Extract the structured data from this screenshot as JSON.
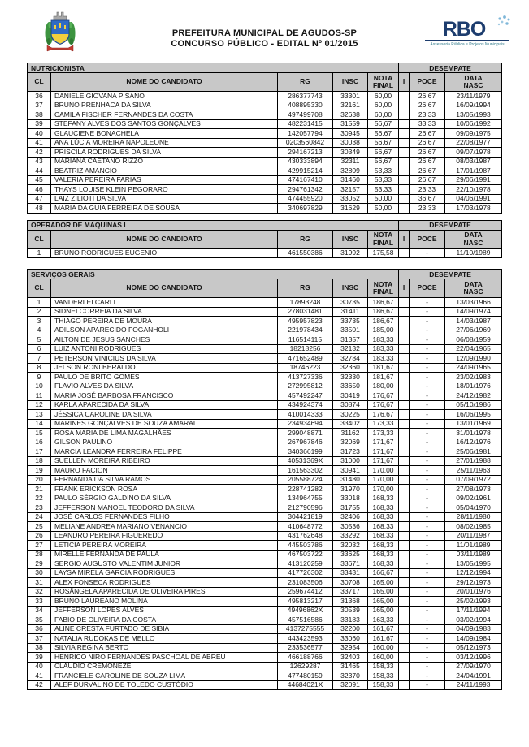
{
  "colors": {
    "table_header_bg": "#c8c8c8",
    "rbo_navy": "#1d3d6e",
    "rbo_teal": "#2f7a8a",
    "crest_blue": "#2f6bc4",
    "crest_yellow": "#f2cf3c",
    "crest_green": "#3d9440",
    "crest_red": "#c43a31"
  },
  "header": {
    "title_line1": "PREFEITURA MUNICIPAL DE AGUDOS-SP",
    "title_line2": "CONCURSO PÚBLICO - EDITAL Nº 01/2015",
    "rbo_text": "RBO",
    "rbo_subtext": "Assessoria Pública e Projetos Municipais"
  },
  "labels": {
    "desempate": "DESEMPATE"
  },
  "columns": {
    "cl": "CL",
    "nome": "NOME DO CANDIDATO",
    "rg": "RG",
    "insc": "INSC",
    "nota1": "NOTA",
    "nota2": "FINAL",
    "i": "I",
    "poce": "POCE",
    "nasc1": "DATA",
    "nasc2": "NASC"
  },
  "tables": [
    {
      "title": "NUTRICIONISTA",
      "rows": [
        [
          "36",
          "DANIELE GIOVANA PISANO",
          "286377743",
          "33301",
          "60,00",
          "",
          "26,67",
          "23/11/1979"
        ],
        [
          "37",
          "BRUNO PRENHACA DA SILVA",
          "408895330",
          "32161",
          "60,00",
          "",
          "26,67",
          "16/09/1994"
        ],
        [
          "38",
          "CAMILA FISCHER FERNANDES DA COSTA",
          "497499708",
          "32638",
          "60,00",
          "",
          "23,33",
          "13/05/1993"
        ],
        [
          "39",
          "STEFANY ALVES DOS SANTOS GONÇALVES",
          "482231415",
          "31559",
          "56,67",
          "",
          "33,33",
          "10/06/1992"
        ],
        [
          "40",
          "GLAUCIENE BONACHELA",
          "142057794",
          "30945",
          "56,67",
          "",
          "26,67",
          "09/09/1975"
        ],
        [
          "41",
          "ANA LÚCIA MOREIRA NAPOLEONE",
          "0203560842",
          "30038",
          "56,67",
          "",
          "26,67",
          "22/08/1977"
        ],
        [
          "42",
          "PRISCILA RODRIGUES DA SILVA",
          "294167213",
          "30349",
          "56,67",
          "",
          "26,67",
          "09/07/1978"
        ],
        [
          "43",
          "MARIANA CAETANO RIZZO",
          "430333894",
          "32311",
          "56,67",
          "",
          "26,67",
          "08/03/1987"
        ],
        [
          "44",
          "BEATRIZ AMANCIO",
          "429915214",
          "32809",
          "53,33",
          "",
          "26,67",
          "17/01/1987"
        ],
        [
          "45",
          "VALERIA PEREIRA FARIAS",
          "474167410",
          "31460",
          "53,33",
          "",
          "26,67",
          "29/06/1991"
        ],
        [
          "46",
          "THAYS LOUISE KLEIN PEGORARO",
          "294761342",
          "32157",
          "53,33",
          "",
          "23,33",
          "22/10/1978"
        ],
        [
          "47",
          "LAIZ ZILIOTI DA SILVA",
          "474455920",
          "33052",
          "50,00",
          "",
          "36,67",
          "04/06/1991"
        ],
        [
          "48",
          "MARIA DA GUIA FERREIRA DE SOUSA",
          "340697829",
          "31629",
          "50,00",
          "",
          "23,33",
          "17/03/1978"
        ]
      ]
    },
    {
      "title": "OPERADOR DE MÁQUINAS I",
      "rows": [
        [
          "1",
          "BRUNO RODRIGUES EUGENIO",
          "461550386",
          "31992",
          "175,58",
          "",
          "-",
          "11/10/1989"
        ]
      ]
    },
    {
      "title": "SERVIÇOS GERAIS",
      "rows": [
        [
          "1",
          "VANDERLEI CARLI",
          "17893248",
          "30735",
          "186,67",
          "",
          "-",
          "13/03/1966"
        ],
        [
          "2",
          "SIDNEI CORREIA DA SILVA",
          "278031481",
          "31411",
          "186,67",
          "",
          "-",
          "14/09/1974"
        ],
        [
          "3",
          "THIAGO PEREIRA DE MOURA",
          "495957823",
          "33735",
          "186,67",
          "",
          "-",
          "14/03/1987"
        ],
        [
          "4",
          "ADILSON APARECIDO FOGANHOLI",
          "221978434",
          "33501",
          "185,00",
          "",
          "-",
          "27/06/1969"
        ],
        [
          "5",
          "AILTON DE JESUS SANCHES",
          "116514115",
          "31357",
          "183,33",
          "",
          "-",
          "06/08/1959"
        ],
        [
          "6",
          "LUIZ ANTONI RODRIGUES",
          "18218256",
          "32132",
          "183,33",
          "",
          "-",
          "22/04/1965"
        ],
        [
          "7",
          "PETERSON VINICIUS DA SILVA",
          "471652489",
          "32784",
          "183,33",
          "",
          "-",
          "12/09/1990"
        ],
        [
          "8",
          "JELSON RONI BERALDO",
          "18746223",
          "32360",
          "181,67",
          "",
          "-",
          "24/09/1965"
        ],
        [
          "9",
          "PAULO DE BRITO GOMES",
          "413727336",
          "32330",
          "181,67",
          "",
          "-",
          "23/02/1983"
        ],
        [
          "10",
          "FLAVIO ALVES DA SILVA",
          "272995812",
          "33650",
          "180,00",
          "",
          "-",
          "18/01/1976"
        ],
        [
          "11",
          "MARIA JOSÉ BARBOSA FRANCISCO",
          "457492247",
          "30419",
          "176,67",
          "",
          "-",
          "24/12/1982"
        ],
        [
          "12",
          "KARLA APARECIDA DA SILVA",
          "434924374",
          "30874",
          "176,67",
          "",
          "-",
          "05/10/1986"
        ],
        [
          "13",
          "JÉSSICA CAROLINE DA SILVA",
          "410014333",
          "30225",
          "176,67",
          "",
          "-",
          "16/06/1995"
        ],
        [
          "14",
          "MARINES GONÇALVES DE SOUZA AMARAL",
          "234934694",
          "33402",
          "173,33",
          "",
          "-",
          "13/01/1969"
        ],
        [
          "15",
          "ROSA MARIA DE LIMA MAGALHÃES",
          "299048871",
          "31162",
          "173,33",
          "",
          "-",
          "31/01/1978"
        ],
        [
          "16",
          "GILSON PAULINO",
          "267967846",
          "32069",
          "171,67",
          "",
          "-",
          "16/12/1976"
        ],
        [
          "17",
          "MARCIA LEANDRA FERREIRA FELIPPE",
          "340366199",
          "31723",
          "171,67",
          "",
          "-",
          "25/06/1981"
        ],
        [
          "18",
          "SUELLEN MOREIRA RIBEIRO",
          "40531369X",
          "31000",
          "171,67",
          "",
          "-",
          "27/01/1988"
        ],
        [
          "19",
          "MAURO FACION",
          "161563302",
          "30941",
          "170,00",
          "",
          "-",
          "25/11/1963"
        ],
        [
          "20",
          "FERNANDA DA SILVA RAMOS",
          "205588724",
          "31480",
          "170,00",
          "",
          "-",
          "07/09/1972"
        ],
        [
          "21",
          "FRANK ERICKSON ROSA",
          "228741282",
          "31970",
          "170,00",
          "",
          "-",
          "27/08/1973"
        ],
        [
          "22",
          "PAULO SÉRGIO GALDINO DA SILVA",
          "134964755",
          "33018",
          "168,33",
          "",
          "-",
          "09/02/1961"
        ],
        [
          "23",
          "JEFFERSON MANOEL TEODORO DA SILVA",
          "212790596",
          "31755",
          "168,33",
          "",
          "-",
          "05/04/1970"
        ],
        [
          "24",
          "JOSÉ CARLOS FERNANDES FILHO",
          "304421819",
          "32406",
          "168,33",
          "",
          "-",
          "28/11/1980"
        ],
        [
          "25",
          "MELIANE ANDREA MARIANO VENANCIO",
          "410648772",
          "30536",
          "168,33",
          "",
          "-",
          "08/02/1985"
        ],
        [
          "26",
          "LEANDRO PEREIRA FIGUEREDO",
          "431762648",
          "33292",
          "168,33",
          "",
          "-",
          "20/11/1987"
        ],
        [
          "27",
          "LETICIA PEREIRA MOREIRA",
          "445503786",
          "32032",
          "168,33",
          "",
          "-",
          "11/01/1989"
        ],
        [
          "28",
          "MIRELLE FERNANDA DE PAULA",
          "467503722",
          "33625",
          "168,33",
          "",
          "-",
          "03/11/1989"
        ],
        [
          "29",
          "SERGIO AUGUSTO VALENTIM JUNIOR",
          "413120259",
          "33671",
          "168,33",
          "",
          "-",
          "13/05/1995"
        ],
        [
          "30",
          "LAYSA MIRELA GARCIA RODRIGUES",
          "417726302",
          "33431",
          "166,67",
          "",
          "-",
          "12/12/1994"
        ],
        [
          "31",
          "ALEX FONSECA RODRIGUES",
          "231083506",
          "30708",
          "165,00",
          "",
          "-",
          "29/12/1973"
        ],
        [
          "32",
          "ROSÂNGELA APARECIDA DE OLIVEIRA PIRES",
          "259674412",
          "33717",
          "165,00",
          "",
          "-",
          "20/01/1976"
        ],
        [
          "33",
          "BRUNO LAUREANO MOLINA",
          "495813217",
          "31368",
          "165,00",
          "",
          "-",
          "25/02/1993"
        ],
        [
          "34",
          "JEFFERSON LOPES ALVES",
          "49496862X",
          "30539",
          "165,00",
          "",
          "-",
          "17/11/1994"
        ],
        [
          "35",
          "FABIO DE OLIVEIRA DA COSTA",
          "457516586",
          "33183",
          "163,33",
          "",
          "-",
          "03/02/1994"
        ],
        [
          "36",
          "ALINE CRESTA FURTADO DE SIBIA",
          "4137275555",
          "32200",
          "161,67",
          "",
          "-",
          "04/09/1983"
        ],
        [
          "37",
          "NATALIA RUDOKAS DE MELLO",
          "443423593",
          "33060",
          "161,67",
          "",
          "-",
          "14/09/1984"
        ],
        [
          "38",
          "SILVIA REGINA BERTO",
          "233536577",
          "32954",
          "160,00",
          "",
          "-",
          "05/12/1973"
        ],
        [
          "39",
          "HENRICO NIRO FERNANDES PASCHOAL DE ABREU",
          "466188766",
          "32403",
          "160,00",
          "",
          "-",
          "03/12/1996"
        ],
        [
          "40",
          "CLAUDIO CREMONEZE",
          "12629287",
          "31465",
          "158,33",
          "",
          "-",
          "27/09/1970"
        ],
        [
          "41",
          "FRANCIELE CAROLINE DE SOUZA LIMA",
          "477480159",
          "32370",
          "158,33",
          "",
          "-",
          "24/04/1991"
        ],
        [
          "42",
          "ALEF DURVALINO DE TOLEDO CUSTÓDIO",
          "44684021X",
          "32091",
          "158,33",
          "",
          "-",
          "24/11/1993"
        ]
      ]
    }
  ]
}
